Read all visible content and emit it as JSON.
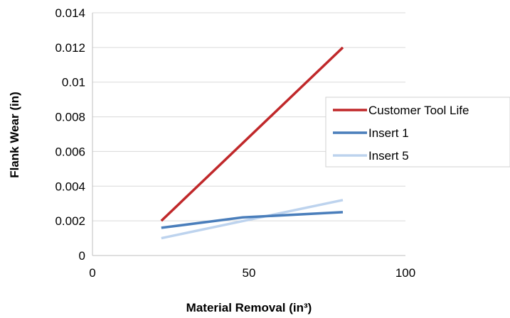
{
  "chart_data": {
    "type": "line",
    "xlabel": "Material Removal (in³)",
    "ylabel": "Flank Wear (in)",
    "xlim": [
      0,
      100
    ],
    "ylim": [
      0,
      0.014
    ],
    "x_ticks": [
      0,
      50,
      100
    ],
    "x_tick_labels": [
      "0",
      "50",
      "100"
    ],
    "y_ticks": [
      0,
      0.002,
      0.004,
      0.006,
      0.008,
      0.01,
      0.012,
      0.014
    ],
    "y_tick_labels": [
      "0",
      "0.002",
      "0.004",
      "0.006",
      "0.008",
      "0.01",
      "0.012",
      "0.014"
    ],
    "grid": "horizontal",
    "legend_position": "right",
    "series": [
      {
        "name": "Customer Tool Life",
        "color": "#c0282a",
        "x": [
          22,
          80
        ],
        "y": [
          0.002,
          0.012
        ]
      },
      {
        "name": "Insert 1",
        "color": "#4a7ebb",
        "x": [
          22,
          48,
          80
        ],
        "y": [
          0.0016,
          0.0022,
          0.0025
        ]
      },
      {
        "name": "Insert 5",
        "color": "#bdd3ee",
        "x": [
          22,
          80
        ],
        "y": [
          0.001,
          0.0032
        ]
      }
    ]
  }
}
